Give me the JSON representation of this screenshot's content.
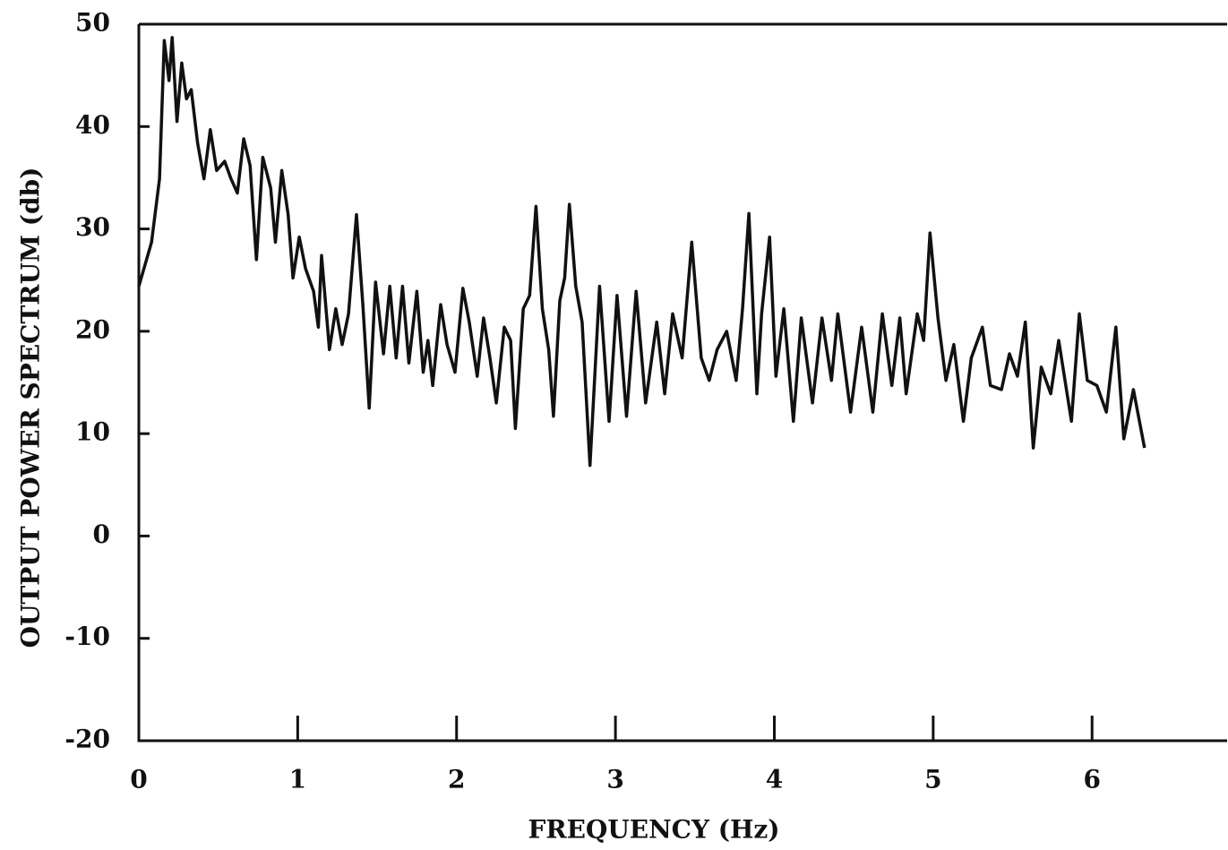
{
  "chart_data": {
    "type": "line",
    "x_label": "FREQUENCY (Hz)",
    "y_label": "OUTPUT POWER SPECTRUM (db)",
    "xlim": [
      0,
      6.85
    ],
    "ylim": [
      -20,
      50
    ],
    "xticks": [
      0,
      1,
      2,
      3,
      4,
      5,
      6
    ],
    "yticks": [
      -20,
      -10,
      0,
      10,
      20,
      30,
      40,
      50
    ],
    "grid": false,
    "series": [
      {
        "color": "#111111",
        "x": [
          0,
          0.03,
          0.08,
          0.13,
          0.16,
          0.19,
          0.21,
          0.24,
          0.27,
          0.3,
          0.33,
          0.37,
          0.41,
          0.45,
          0.49,
          0.54,
          0.58,
          0.62,
          0.66,
          0.7,
          0.74,
          0.78,
          0.83,
          0.86,
          0.9,
          0.94,
          0.97,
          1.01,
          1.05,
          1.1,
          1.13,
          1.15,
          1.2,
          1.24,
          1.28,
          1.32,
          1.37,
          1.41,
          1.45,
          1.49,
          1.54,
          1.58,
          1.62,
          1.66,
          1.7,
          1.75,
          1.79,
          1.82,
          1.85,
          1.9,
          1.94,
          1.99,
          2.04,
          2.08,
          2.13,
          2.17,
          2.21,
          2.25,
          2.3,
          2.34,
          2.37,
          2.42,
          2.46,
          2.5,
          2.54,
          2.58,
          2.61,
          2.65,
          2.68,
          2.71,
          2.75,
          2.79,
          2.84,
          2.9,
          2.96,
          3.01,
          3.07,
          3.13,
          3.19,
          3.26,
          3.31,
          3.36,
          3.42,
          3.48,
          3.54,
          3.59,
          3.64,
          3.7,
          3.76,
          3.8,
          3.84,
          3.89,
          3.92,
          3.97,
          4.01,
          4.06,
          4.12,
          4.17,
          4.24,
          4.3,
          4.36,
          4.4,
          4.48,
          4.55,
          4.62,
          4.68,
          4.74,
          4.79,
          4.83,
          4.9,
          4.94,
          4.98,
          5.03,
          5.08,
          5.13,
          5.19,
          5.24,
          5.31,
          5.36,
          5.43,
          5.48,
          5.53,
          5.58,
          5.63,
          5.68,
          5.74,
          5.79,
          5.87,
          5.92,
          5.97,
          6.03,
          6.09,
          6.15,
          6.2,
          6.26,
          6.33
        ],
        "values": [
          24.4,
          26,
          28.7,
          34.9,
          48.4,
          44.5,
          48.7,
          40.5,
          46.2,
          42.7,
          43.6,
          38.4,
          34.9,
          39.7,
          35.7,
          36.6,
          34.9,
          33.5,
          38.8,
          36.2,
          27,
          37,
          34,
          28.7,
          35.7,
          31.4,
          25.2,
          29.2,
          26.1,
          23.9,
          20.4,
          27.4,
          18.2,
          22.2,
          18.7,
          21.7,
          31.4,
          22.6,
          12.5,
          24.8,
          17.8,
          24.4,
          17.4,
          24.4,
          16.9,
          23.9,
          16,
          19.1,
          14.7,
          22.6,
          18.7,
          16,
          24.2,
          20.9,
          15.6,
          21.3,
          17.4,
          13,
          20.4,
          19.1,
          10.5,
          22.2,
          23.5,
          32.2,
          22.2,
          18.2,
          11.7,
          23,
          25.2,
          32.4,
          24.4,
          20.9,
          6.9,
          24.4,
          11.2,
          23.5,
          11.7,
          23.9,
          13,
          20.9,
          13.9,
          21.7,
          17.4,
          28.7,
          17.4,
          15.2,
          18.2,
          20,
          15.2,
          22.2,
          31.5,
          13.9,
          21.7,
          29.2,
          15.6,
          22.2,
          11.2,
          21.3,
          13,
          21.3,
          15.2,
          21.7,
          12.1,
          20.4,
          12.1,
          21.7,
          14.7,
          21.3,
          13.9,
          21.7,
          19.1,
          29.6,
          21.3,
          15.2,
          18.7,
          11.2,
          17.4,
          20.4,
          14.7,
          14.3,
          17.8,
          15.6,
          20.9,
          8.6,
          16.5,
          13.9,
          19.1,
          11.2,
          21.7,
          15.2,
          14.7,
          12.1,
          20.4,
          9.5,
          14.3,
          8.6
        ]
      }
    ]
  }
}
